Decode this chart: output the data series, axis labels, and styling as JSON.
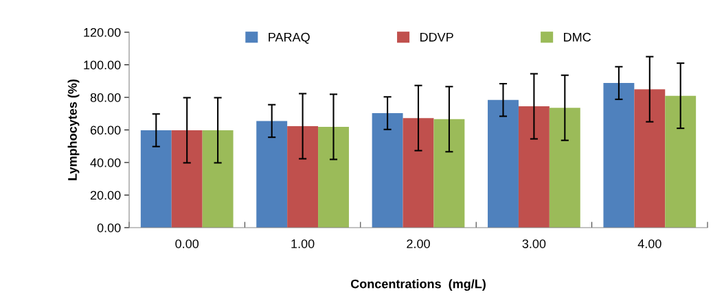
{
  "chart_data": {
    "type": "bar",
    "xlabel": "Concentrations  (mg/L)",
    "ylabel": "Lymphocytes (%)",
    "categories": [
      "0.00",
      "1.00",
      "2.00",
      "3.00",
      "4.00"
    ],
    "series": [
      {
        "name": "PARAQ",
        "color": "#4f81bd",
        "values": [
          59.8,
          65.5,
          70.3,
          78.4,
          88.8
        ],
        "errors": [
          10,
          10,
          10,
          10,
          10
        ]
      },
      {
        "name": "DDVP",
        "color": "#c0504d",
        "values": [
          59.8,
          62.3,
          67.3,
          74.5,
          85.0
        ],
        "errors": [
          20,
          20,
          20,
          20,
          20
        ]
      },
      {
        "name": "DMC",
        "color": "#9bbb59",
        "values": [
          59.8,
          61.9,
          66.6,
          73.6,
          81.0
        ],
        "errors": [
          20,
          20,
          20,
          20,
          20
        ]
      }
    ],
    "ylim": [
      0,
      120
    ],
    "yticks": [
      {
        "value": 0,
        "label": "0.00"
      },
      {
        "value": 20,
        "label": "20.00"
      },
      {
        "value": 40,
        "label": "40.00"
      },
      {
        "value": 60,
        "label": "60.00"
      },
      {
        "value": 80,
        "label": "80.00"
      },
      {
        "value": 100,
        "label": "100.00"
      },
      {
        "value": 120,
        "label": "120.00"
      }
    ],
    "legend": "top"
  }
}
